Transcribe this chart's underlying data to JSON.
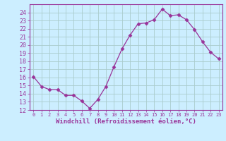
{
  "x": [
    0,
    1,
    2,
    3,
    4,
    5,
    6,
    7,
    8,
    9,
    10,
    11,
    12,
    13,
    14,
    15,
    16,
    17,
    18,
    19,
    20,
    21,
    22,
    23
  ],
  "y": [
    16.1,
    14.9,
    14.5,
    14.5,
    13.8,
    13.8,
    13.1,
    12.2,
    13.3,
    14.9,
    17.3,
    19.5,
    21.2,
    22.6,
    22.7,
    23.1,
    24.4,
    23.6,
    23.7,
    23.1,
    21.9,
    20.4,
    19.1,
    18.3
  ],
  "line_color": "#993399",
  "marker": "D",
  "marker_size": 2.5,
  "bg_color": "#cceeff",
  "grid_color": "#aacccc",
  "xlabel": "Windchill (Refroidissement éolien,°C)",
  "ylim": [
    12,
    25
  ],
  "xlim": [
    -0.5,
    23.5
  ],
  "yticks": [
    12,
    13,
    14,
    15,
    16,
    17,
    18,
    19,
    20,
    21,
    22,
    23,
    24
  ],
  "xticks": [
    0,
    1,
    2,
    3,
    4,
    5,
    6,
    7,
    8,
    9,
    10,
    11,
    12,
    13,
    14,
    15,
    16,
    17,
    18,
    19,
    20,
    21,
    22,
    23
  ],
  "tick_color": "#993399",
  "label_fontsize": 6.5,
  "tick_fontsize": 6.0
}
